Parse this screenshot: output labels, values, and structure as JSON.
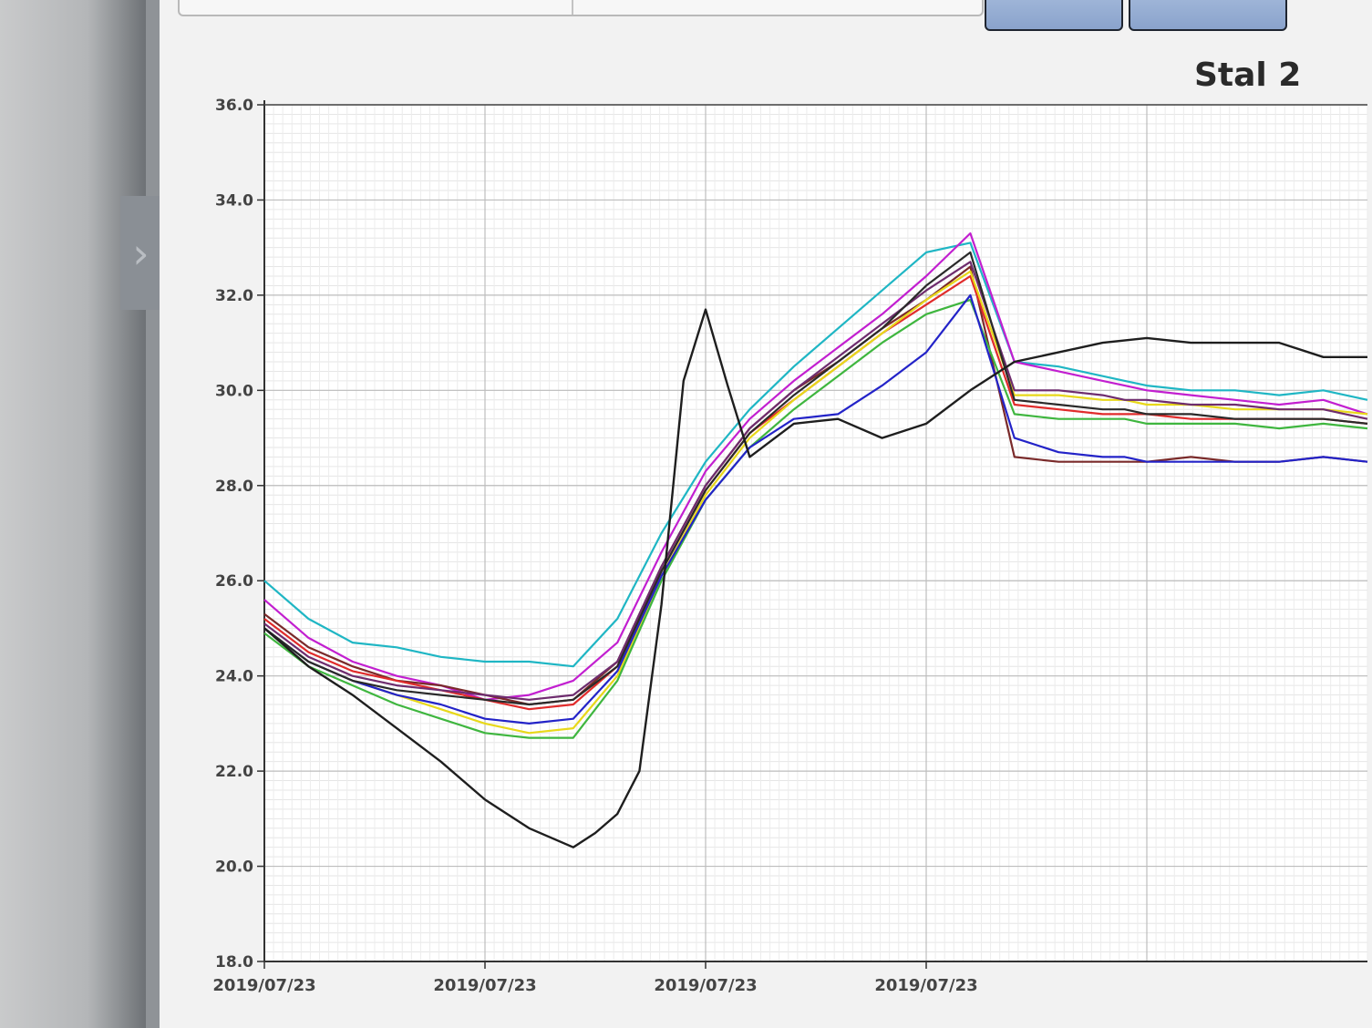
{
  "chart_data": {
    "type": "line",
    "title": "Stal 2",
    "xlabel": "",
    "ylabel": "",
    "ylim": [
      18.0,
      36.0
    ],
    "y_ticks": [
      "18.0",
      "20.0",
      "22.0",
      "24.0",
      "26.0",
      "28.0",
      "30.0",
      "32.0",
      "34.0",
      "36.0"
    ],
    "x_ticks": [
      "2019/07/23",
      "2019/07/23",
      "2019/07/23",
      "2019/07/23"
    ],
    "x_range": [
      0,
      100
    ],
    "grid": true,
    "x": [
      0,
      4,
      8,
      12,
      16,
      20,
      24,
      28,
      32,
      36,
      40,
      44,
      48,
      52,
      56,
      60,
      64,
      68,
      72,
      76,
      78,
      80,
      84,
      88,
      92,
      96,
      100
    ],
    "series": [
      {
        "color": "#1fb6c4",
        "values": [
          26.0,
          25.2,
          24.7,
          24.6,
          24.4,
          24.3,
          24.3,
          24.2,
          25.2,
          27.0,
          28.5,
          29.6,
          30.5,
          31.3,
          32.1,
          32.9,
          33.1,
          30.6,
          30.5,
          30.3,
          30.2,
          30.1,
          30.0,
          30.0,
          29.9,
          30.0,
          29.8
        ]
      },
      {
        "color": "#c21fd0",
        "values": [
          25.6,
          24.8,
          24.3,
          24.0,
          23.8,
          23.5,
          23.6,
          23.9,
          24.7,
          26.6,
          28.3,
          29.4,
          30.2,
          30.9,
          31.6,
          32.4,
          33.3,
          30.6,
          30.4,
          30.2,
          30.1,
          30.0,
          29.9,
          29.8,
          29.7,
          29.8,
          29.5
        ]
      },
      {
        "color": "#7a2a2a",
        "values": [
          25.3,
          24.6,
          24.2,
          23.9,
          23.8,
          23.6,
          23.4,
          23.5,
          24.3,
          26.3,
          28.0,
          29.2,
          30.0,
          30.6,
          31.3,
          31.9,
          32.6,
          28.6,
          28.5,
          28.5,
          28.5,
          28.5,
          28.6,
          28.5,
          28.5,
          28.6,
          28.5
        ]
      },
      {
        "color": "#e02b2b",
        "values": [
          25.2,
          24.5,
          24.1,
          23.9,
          23.7,
          23.5,
          23.3,
          23.4,
          24.2,
          26.2,
          27.9,
          29.1,
          29.8,
          30.5,
          31.2,
          31.8,
          32.4,
          29.7,
          29.6,
          29.5,
          29.5,
          29.5,
          29.4,
          29.4,
          29.4,
          29.4,
          29.3
        ]
      },
      {
        "color": "#e8d81a",
        "values": [
          25.0,
          24.3,
          23.9,
          23.6,
          23.3,
          23.0,
          22.8,
          22.9,
          24.0,
          26.1,
          27.8,
          29.0,
          29.8,
          30.5,
          31.2,
          31.9,
          32.5,
          29.9,
          29.9,
          29.8,
          29.8,
          29.7,
          29.7,
          29.6,
          29.6,
          29.6,
          29.5
        ]
      },
      {
        "color": "#3fb63f",
        "values": [
          24.9,
          24.2,
          23.8,
          23.4,
          23.1,
          22.8,
          22.7,
          22.7,
          23.9,
          26.0,
          27.7,
          28.8,
          29.6,
          30.3,
          31.0,
          31.6,
          31.9,
          29.5,
          29.4,
          29.4,
          29.4,
          29.3,
          29.3,
          29.3,
          29.2,
          29.3,
          29.2
        ]
      },
      {
        "color": "#2323c8",
        "values": [
          25.0,
          24.3,
          23.9,
          23.6,
          23.4,
          23.1,
          23.0,
          23.1,
          24.1,
          26.1,
          27.7,
          28.8,
          29.4,
          29.5,
          30.1,
          30.8,
          32.0,
          29.0,
          28.7,
          28.6,
          28.6,
          28.5,
          28.5,
          28.5,
          28.5,
          28.6,
          28.5
        ]
      },
      {
        "color": "#6e2c6e",
        "values": [
          25.1,
          24.4,
          24.0,
          23.8,
          23.7,
          23.6,
          23.5,
          23.6,
          24.3,
          26.3,
          28.0,
          29.2,
          30.0,
          30.7,
          31.4,
          32.1,
          32.7,
          30.0,
          30.0,
          29.9,
          29.8,
          29.8,
          29.7,
          29.7,
          29.6,
          29.6,
          29.4
        ]
      },
      {
        "color": "#2a2a2a",
        "values": [
          25.0,
          24.3,
          23.9,
          23.7,
          23.6,
          23.5,
          23.4,
          23.5,
          24.2,
          26.2,
          27.9,
          29.1,
          29.9,
          30.6,
          31.3,
          32.2,
          32.9,
          29.8,
          29.7,
          29.6,
          29.6,
          29.5,
          29.5,
          29.4,
          29.4,
          29.4,
          29.3
        ]
      }
    ],
    "outlier_series": {
      "color": "#1e1e1e",
      "x": [
        0,
        4,
        8,
        12,
        16,
        20,
        24,
        28,
        30,
        32,
        34,
        36,
        38,
        40,
        42,
        44,
        48,
        52,
        56,
        60,
        64,
        68,
        72,
        76,
        80,
        84,
        88,
        92,
        96,
        100
      ],
      "values": [
        25.0,
        24.2,
        23.6,
        22.9,
        22.2,
        21.4,
        20.8,
        20.4,
        20.7,
        21.1,
        22.0,
        25.5,
        30.2,
        31.7,
        30.1,
        28.6,
        29.3,
        29.4,
        29.0,
        29.3,
        30.0,
        30.6,
        30.8,
        31.0,
        31.1,
        31.0,
        31.0,
        31.0,
        30.7,
        30.7
      ]
    }
  }
}
